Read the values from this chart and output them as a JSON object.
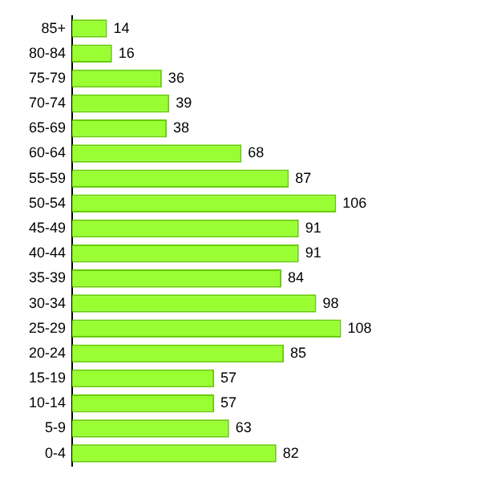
{
  "chart_data": {
    "type": "bar",
    "orientation": "horizontal",
    "categories": [
      "85+",
      "80-84",
      "75-79",
      "70-74",
      "65-69",
      "60-64",
      "55-59",
      "50-54",
      "45-49",
      "40-44",
      "35-39",
      "30-34",
      "25-29",
      "20-24",
      "15-19",
      "10-14",
      "5-9",
      "0-4"
    ],
    "values": [
      14,
      16,
      36,
      39,
      38,
      68,
      87,
      106,
      91,
      91,
      84,
      98,
      108,
      85,
      57,
      57,
      63,
      82
    ],
    "color": "#99ff33",
    "data_labels": true
  }
}
